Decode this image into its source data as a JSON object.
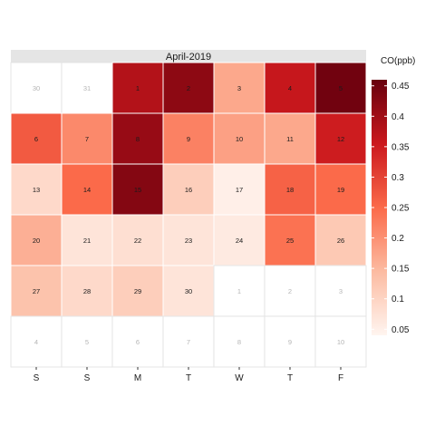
{
  "chart_data": {
    "type": "heatmap",
    "title": "April-2019",
    "xlabel": "",
    "ylabel": "",
    "columns": [
      "S",
      "S",
      "M",
      "T",
      "W",
      "T",
      "F"
    ],
    "legend": {
      "title": "CO(ppb)",
      "min": 0.04,
      "max": 0.46,
      "ticks": [
        "0.05",
        "0.1",
        "0.15",
        "0.2",
        "0.25",
        "0.3",
        "0.35",
        "0.4",
        "0.45"
      ],
      "tick_values": [
        0.05,
        0.1,
        0.15,
        0.2,
        0.25,
        0.3,
        0.35,
        0.4,
        0.45
      ],
      "placement": "right"
    },
    "colors": {
      "low": "#fff5f0",
      "high": "#67000d",
      "header_bg": "#e5e5e5",
      "grid": "#dddddd"
    },
    "weeks": [
      [
        {
          "day": "30",
          "value": null
        },
        {
          "day": "31",
          "value": null
        },
        {
          "day": "1",
          "value": 0.38
        },
        {
          "day": "2",
          "value": 0.42
        },
        {
          "day": "3",
          "value": 0.17
        },
        {
          "day": "4",
          "value": 0.36
        },
        {
          "day": "5",
          "value": 0.45
        }
      ],
      [
        {
          "day": "6",
          "value": 0.27
        },
        {
          "day": "7",
          "value": 0.21
        },
        {
          "day": "8",
          "value": 0.41
        },
        {
          "day": "9",
          "value": 0.22
        },
        {
          "day": "10",
          "value": 0.18
        },
        {
          "day": "11",
          "value": 0.17
        },
        {
          "day": "12",
          "value": 0.35
        }
      ],
      [
        {
          "day": "13",
          "value": 0.09
        },
        {
          "day": "14",
          "value": 0.25
        },
        {
          "day": "15",
          "value": 0.43
        },
        {
          "day": "16",
          "value": 0.11
        },
        {
          "day": "17",
          "value": 0.05
        },
        {
          "day": "18",
          "value": 0.26
        },
        {
          "day": "19",
          "value": 0.25
        }
      ],
      [
        {
          "day": "20",
          "value": 0.16
        },
        {
          "day": "21",
          "value": 0.07
        },
        {
          "day": "22",
          "value": 0.08
        },
        {
          "day": "23",
          "value": 0.07
        },
        {
          "day": "24",
          "value": 0.06
        },
        {
          "day": "25",
          "value": 0.24
        },
        {
          "day": "26",
          "value": 0.12
        }
      ],
      [
        {
          "day": "27",
          "value": 0.13
        },
        {
          "day": "28",
          "value": 0.09
        },
        {
          "day": "29",
          "value": 0.11
        },
        {
          "day": "30",
          "value": 0.07
        },
        {
          "day": "1",
          "value": null
        },
        {
          "day": "2",
          "value": null
        },
        {
          "day": "3",
          "value": null
        }
      ],
      [
        {
          "day": "4",
          "value": null
        },
        {
          "day": "5",
          "value": null
        },
        {
          "day": "6",
          "value": null
        },
        {
          "day": "7",
          "value": null
        },
        {
          "day": "8",
          "value": null
        },
        {
          "day": "9",
          "value": null
        },
        {
          "day": "10",
          "value": null
        }
      ]
    ]
  }
}
